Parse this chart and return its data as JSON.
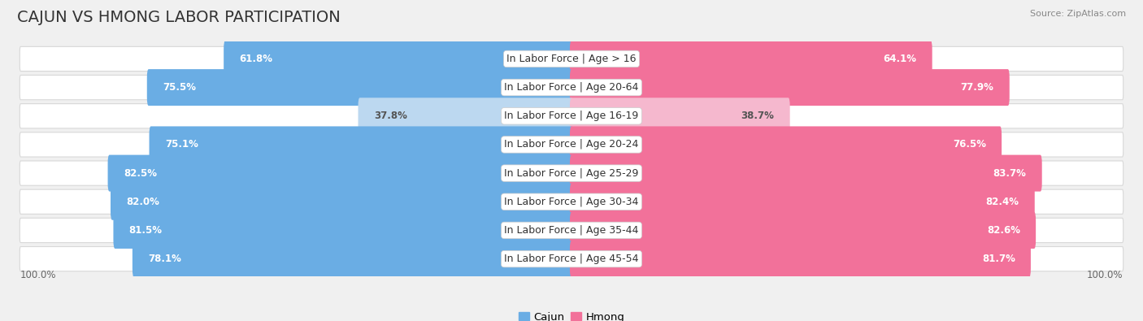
{
  "title": "CAJUN VS HMONG LABOR PARTICIPATION",
  "source": "Source: ZipAtlas.com",
  "categories": [
    "In Labor Force | Age > 16",
    "In Labor Force | Age 20-64",
    "In Labor Force | Age 16-19",
    "In Labor Force | Age 20-24",
    "In Labor Force | Age 25-29",
    "In Labor Force | Age 30-34",
    "In Labor Force | Age 35-44",
    "In Labor Force | Age 45-54"
  ],
  "cajun_values": [
    61.8,
    75.5,
    37.8,
    75.1,
    82.5,
    82.0,
    81.5,
    78.1
  ],
  "hmong_values": [
    64.1,
    77.9,
    38.7,
    76.5,
    83.7,
    82.4,
    82.6,
    81.7
  ],
  "cajun_color": "#6aade4",
  "cajun_color_light": "#bcd8f0",
  "hmong_color": "#f2719a",
  "hmong_color_light": "#f5b8ce",
  "background_color": "#f0f0f0",
  "row_bg_color": "#ffffff",
  "row_border_color": "#d8d8d8",
  "bar_height": 0.68,
  "max_value": 100.0,
  "title_fontsize": 14,
  "label_fontsize": 9,
  "value_fontsize": 8.5,
  "legend_fontsize": 9.5,
  "axis_label_fontsize": 8.5,
  "light_rows": [
    2
  ]
}
